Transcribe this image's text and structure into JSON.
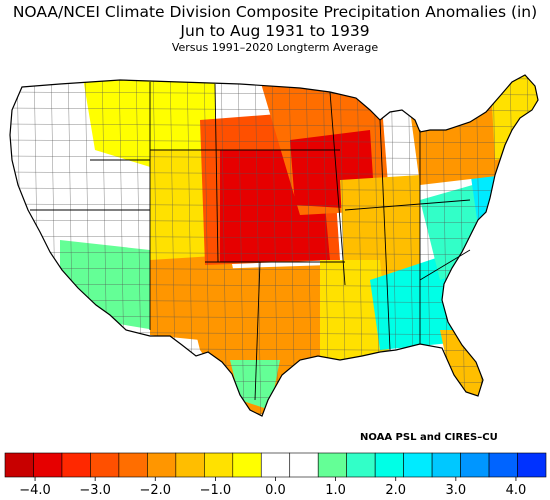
{
  "map": {
    "title_line1": "NOAA/NCEI Climate Division Composite Precipitation Anomalies (in)",
    "title_line2": "Jun to Aug 1931 to 1939",
    "subtitle": "Versus 1991–2020 Longterm Average",
    "credit": "NOAA PSL and CIRES–CU",
    "region": "contiguous-united-states",
    "units": "in",
    "scale_min": -4.5,
    "scale_max": 4.5,
    "bin_width": 0.5
  },
  "legend": {
    "colors": [
      "#c80000",
      "#e60000",
      "#ff2800",
      "#ff5000",
      "#ff6e00",
      "#ff9600",
      "#ffbe00",
      "#ffe100",
      "#ffff00",
      "#ffffff",
      "#ffffff",
      "#64ff96",
      "#32ffc8",
      "#00ffe6",
      "#00ebff",
      "#00c8ff",
      "#0096ff",
      "#0064ff",
      "#0032ff"
    ],
    "ticks": [
      {
        "value": -4.0,
        "label": "−4.0"
      },
      {
        "value": -3.0,
        "label": "−3.0"
      },
      {
        "value": -2.0,
        "label": "−2.0"
      },
      {
        "value": -1.0,
        "label": "−1.0"
      },
      {
        "value": 0.0,
        "label": "0.0"
      },
      {
        "value": 1.0,
        "label": "1.0"
      },
      {
        "value": 2.0,
        "label": "2.0"
      },
      {
        "value": 3.0,
        "label": "3.0"
      },
      {
        "value": 4.0,
        "label": "4.0"
      }
    ]
  },
  "regions": [
    {
      "name": "pacific-northwest",
      "color": "#ffffff"
    },
    {
      "name": "california-great-basin",
      "color": "#ffffff"
    },
    {
      "name": "arizona-southwest",
      "color": "#64ff96"
    },
    {
      "name": "rockies-montana",
      "color": "#ffff00"
    },
    {
      "name": "wyoming-colorado",
      "color": "#ffe100"
    },
    {
      "name": "great-plains-south",
      "color": "#ff9600"
    },
    {
      "name": "great-plains-core",
      "color": "#ff5000"
    },
    {
      "name": "plains-max-dry",
      "color": "#e60000"
    },
    {
      "name": "upper-midwest",
      "color": "#ff6e00"
    },
    {
      "name": "minnesota-wisconsin-core",
      "color": "#e60000"
    },
    {
      "name": "texas",
      "color": "#ff9600"
    },
    {
      "name": "south-texas",
      "color": "#64ff96"
    },
    {
      "name": "ohio-valley",
      "color": "#ffbe00"
    },
    {
      "name": "lower-mississippi",
      "color": "#ffe100"
    },
    {
      "name": "southeast",
      "color": "#00ffe6"
    },
    {
      "name": "carolinas-virginia",
      "color": "#32ffc8"
    },
    {
      "name": "mid-atlantic",
      "color": "#00ebff"
    },
    {
      "name": "northeast",
      "color": "#ff9600"
    },
    {
      "name": "new-england",
      "color": "#ffe100"
    },
    {
      "name": "florida",
      "color": "#ffbe00"
    }
  ]
}
